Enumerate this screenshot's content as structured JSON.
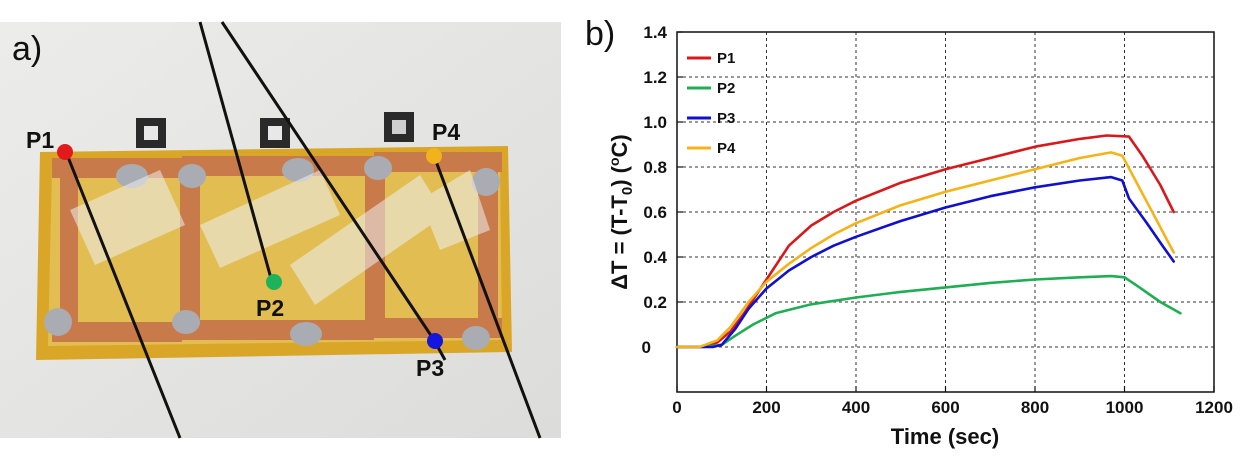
{
  "photo": {
    "panel_label": "a)",
    "points": [
      {
        "label": "P1",
        "color": "#e31a1c"
      },
      {
        "label": "P2",
        "color": "#1db35a"
      },
      {
        "label": "P3",
        "color": "#1515e0"
      },
      {
        "label": "P4",
        "color": "#f2b21b"
      }
    ]
  },
  "chart_data": {
    "type": "line",
    "panel_label": "b)",
    "xlabel": "Time (sec)",
    "ylabel_main": "ΔT = (T-T",
    "ylabel_sub": "0",
    "ylabel_end": ") (",
    "ylabel_sup": "o",
    "ylabel_unit": "C)",
    "xlim": [
      0,
      1200
    ],
    "ylim": [
      -0.2,
      1.4
    ],
    "xticks": [
      0,
      200,
      400,
      600,
      800,
      1000,
      1200
    ],
    "xtick_labels": [
      "0",
      "200",
      "400",
      "600",
      "800",
      "1000",
      "1200"
    ],
    "yticks": [
      0,
      0.2,
      0.4,
      0.6,
      0.8,
      1.0,
      1.2,
      1.4
    ],
    "ytick_labels": [
      "0",
      "0.2",
      "0.4",
      "0.6",
      "0.8",
      "1.0",
      "1.2",
      "1.4"
    ],
    "grid": true,
    "legend_position": "top-left",
    "series": [
      {
        "name": "P1",
        "color": "#d7191c",
        "points": [
          [
            0,
            0
          ],
          [
            50,
            0
          ],
          [
            90,
            0.02
          ],
          [
            120,
            0.07
          ],
          [
            150,
            0.15
          ],
          [
            200,
            0.3
          ],
          [
            250,
            0.45
          ],
          [
            300,
            0.54
          ],
          [
            350,
            0.6
          ],
          [
            400,
            0.65
          ],
          [
            500,
            0.73
          ],
          [
            600,
            0.79
          ],
          [
            700,
            0.84
          ],
          [
            800,
            0.89
          ],
          [
            900,
            0.925
          ],
          [
            960,
            0.94
          ],
          [
            1010,
            0.935
          ],
          [
            1040,
            0.85
          ],
          [
            1080,
            0.72
          ],
          [
            1110,
            0.6
          ]
        ]
      },
      {
        "name": "P2",
        "color": "#1fae54",
        "points": [
          [
            0,
            0
          ],
          [
            60,
            0
          ],
          [
            100,
            0.01
          ],
          [
            130,
            0.05
          ],
          [
            170,
            0.1
          ],
          [
            220,
            0.15
          ],
          [
            300,
            0.19
          ],
          [
            400,
            0.22
          ],
          [
            500,
            0.245
          ],
          [
            600,
            0.265
          ],
          [
            700,
            0.285
          ],
          [
            800,
            0.3
          ],
          [
            900,
            0.31
          ],
          [
            970,
            0.315
          ],
          [
            1000,
            0.31
          ],
          [
            1030,
            0.27
          ],
          [
            1080,
            0.2
          ],
          [
            1125,
            0.15
          ]
        ]
      },
      {
        "name": "P3",
        "color": "#1111cc",
        "points": [
          [
            0,
            0
          ],
          [
            80,
            0
          ],
          [
            100,
            0.01
          ],
          [
            130,
            0.08
          ],
          [
            160,
            0.17
          ],
          [
            200,
            0.26
          ],
          [
            250,
            0.34
          ],
          [
            300,
            0.4
          ],
          [
            350,
            0.45
          ],
          [
            400,
            0.49
          ],
          [
            500,
            0.56
          ],
          [
            600,
            0.62
          ],
          [
            700,
            0.67
          ],
          [
            800,
            0.71
          ],
          [
            900,
            0.74
          ],
          [
            970,
            0.755
          ],
          [
            995,
            0.74
          ],
          [
            1010,
            0.66
          ],
          [
            1050,
            0.55
          ],
          [
            1085,
            0.45
          ],
          [
            1110,
            0.38
          ]
        ]
      },
      {
        "name": "P4",
        "color": "#f5b31a",
        "points": [
          [
            0,
            0
          ],
          [
            50,
            0
          ],
          [
            90,
            0.03
          ],
          [
            120,
            0.09
          ],
          [
            160,
            0.2
          ],
          [
            200,
            0.29
          ],
          [
            250,
            0.37
          ],
          [
            300,
            0.44
          ],
          [
            350,
            0.5
          ],
          [
            400,
            0.55
          ],
          [
            500,
            0.63
          ],
          [
            600,
            0.69
          ],
          [
            700,
            0.74
          ],
          [
            800,
            0.79
          ],
          [
            900,
            0.84
          ],
          [
            970,
            0.865
          ],
          [
            995,
            0.85
          ],
          [
            1030,
            0.72
          ],
          [
            1070,
            0.57
          ],
          [
            1110,
            0.42
          ]
        ]
      }
    ]
  }
}
